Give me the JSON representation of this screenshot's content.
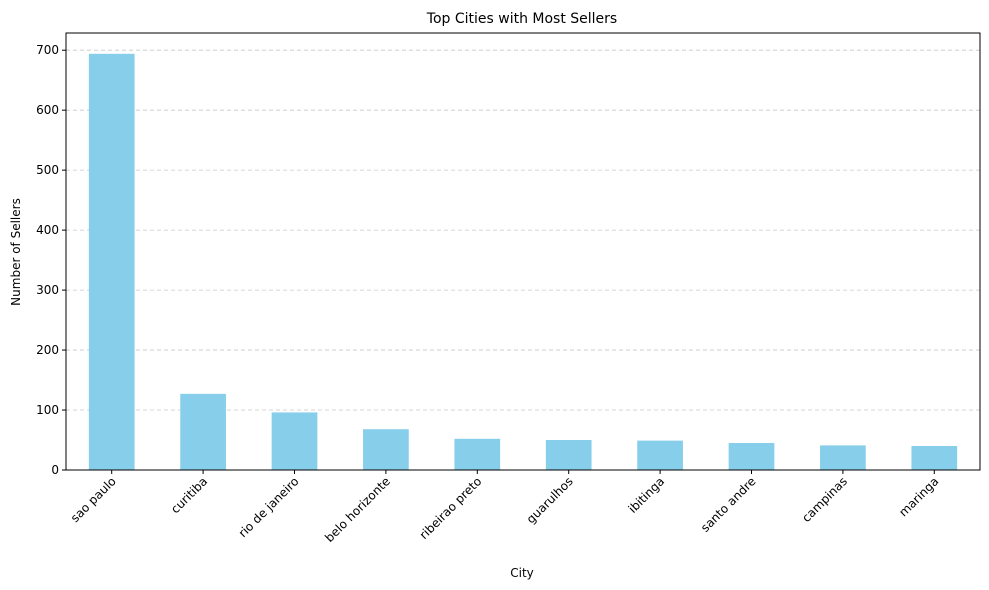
{
  "chart_data": {
    "type": "bar",
    "title": "Top Cities with Most Sellers",
    "xlabel": "City",
    "ylabel": "Number of Sellers",
    "categories": [
      "sao paulo",
      "curitiba",
      "rio de janeiro",
      "belo horizonte",
      "ribeirao preto",
      "guarulhos",
      "ibitinga",
      "santo andre",
      "campinas",
      "maringa"
    ],
    "values": [
      694,
      127,
      96,
      68,
      52,
      50,
      49,
      45,
      41,
      40
    ],
    "ylim": [
      0,
      728.7
    ],
    "yticks": [
      0,
      100,
      200,
      300,
      400,
      500,
      600,
      700
    ],
    "ytick_labels": [
      "0",
      "100",
      "200",
      "300",
      "400",
      "500",
      "600",
      "700"
    ],
    "xtick_rotation_deg": 45,
    "grid": "y-axis dashed",
    "bar_color": "#87ceeb",
    "grid_color": "#c8c8c8",
    "axis_color": "#000000"
  }
}
